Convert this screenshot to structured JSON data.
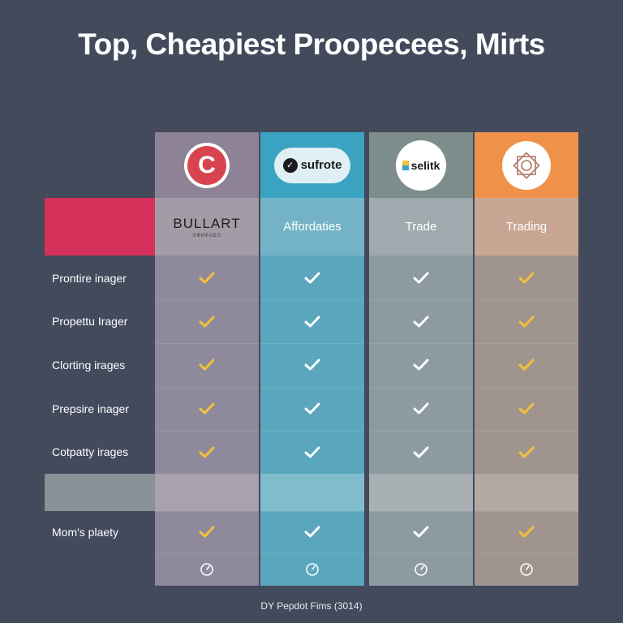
{
  "title": "Top, Cheapiest Proopecees, Mirts",
  "columns": [
    {
      "logo_text": "C",
      "header": "BULLART",
      "subheader": "ЭФИРАБS",
      "color": "#8e8a9b",
      "head_color": "#8e8396",
      "check_color": "#f3c13a"
    },
    {
      "logo_text": "sufrote",
      "header": "Affordaties",
      "color": "#5aa6bd",
      "head_color": "#3aa3c2",
      "check_color": "#ffffff"
    },
    {
      "logo_text": "selitk",
      "header": "Trade",
      "color": "#8d9aa2",
      "head_color": "#7d8d8c",
      "check_color": "#ffffff"
    },
    {
      "logo_text": "",
      "header": "Trading",
      "color": "#a0958e",
      "head_color": "#f0914a",
      "check_color": "#f3c13a"
    }
  ],
  "rows": [
    {
      "label": "Prontire inager",
      "values": [
        true,
        true,
        true,
        true
      ]
    },
    {
      "label": "Propettu Irager",
      "values": [
        true,
        true,
        true,
        true
      ]
    },
    {
      "label": "Clorting irages",
      "values": [
        true,
        true,
        true,
        true
      ]
    },
    {
      "label": "Prepsire inager",
      "values": [
        true,
        true,
        true,
        true
      ]
    },
    {
      "label": "Cotpatty irages",
      "values": [
        true,
        true,
        true,
        true
      ]
    },
    {
      "label": "",
      "values": [
        false,
        false,
        false,
        false
      ]
    },
    {
      "label": "Mom's plaety",
      "values": [
        true,
        true,
        true,
        true
      ]
    },
    {
      "label": "",
      "values": [
        "clock",
        "clock",
        "clock",
        "clock"
      ]
    }
  ],
  "footer": "DY Pepdot Fims (3014)",
  "colors": {
    "background": "#424a5c",
    "highlight": "#d5315a",
    "grey_band": "#8a9196"
  }
}
